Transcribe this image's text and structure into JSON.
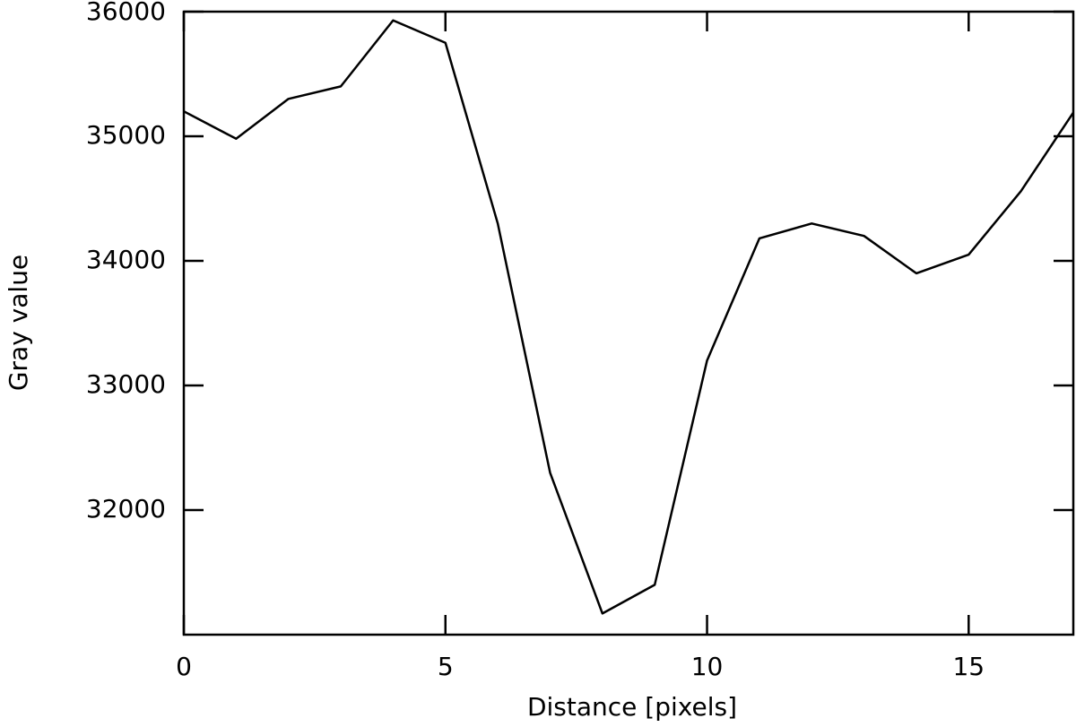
{
  "chart_data": {
    "type": "line",
    "xlabel": "Distance [pixels]",
    "ylabel": "Gray value",
    "x": [
      0,
      1,
      2,
      3,
      4,
      5,
      6,
      7,
      8,
      9,
      10,
      11,
      12,
      13,
      14,
      15,
      16,
      17
    ],
    "series": [
      {
        "color": "#000000",
        "values": [
          35200,
          34980,
          35300,
          35400,
          35930,
          35750,
          34300,
          32300,
          31170,
          31400,
          33200,
          34180,
          34300,
          34200,
          33900,
          34050,
          34560,
          35190
        ]
      }
    ],
    "xlim": [
      0,
      17
    ],
    "xticks": [
      0,
      5,
      10,
      15
    ],
    "ylim": [
      31000,
      36000
    ],
    "yticks": [
      32000,
      33000,
      34000,
      35000,
      36000
    ]
  }
}
